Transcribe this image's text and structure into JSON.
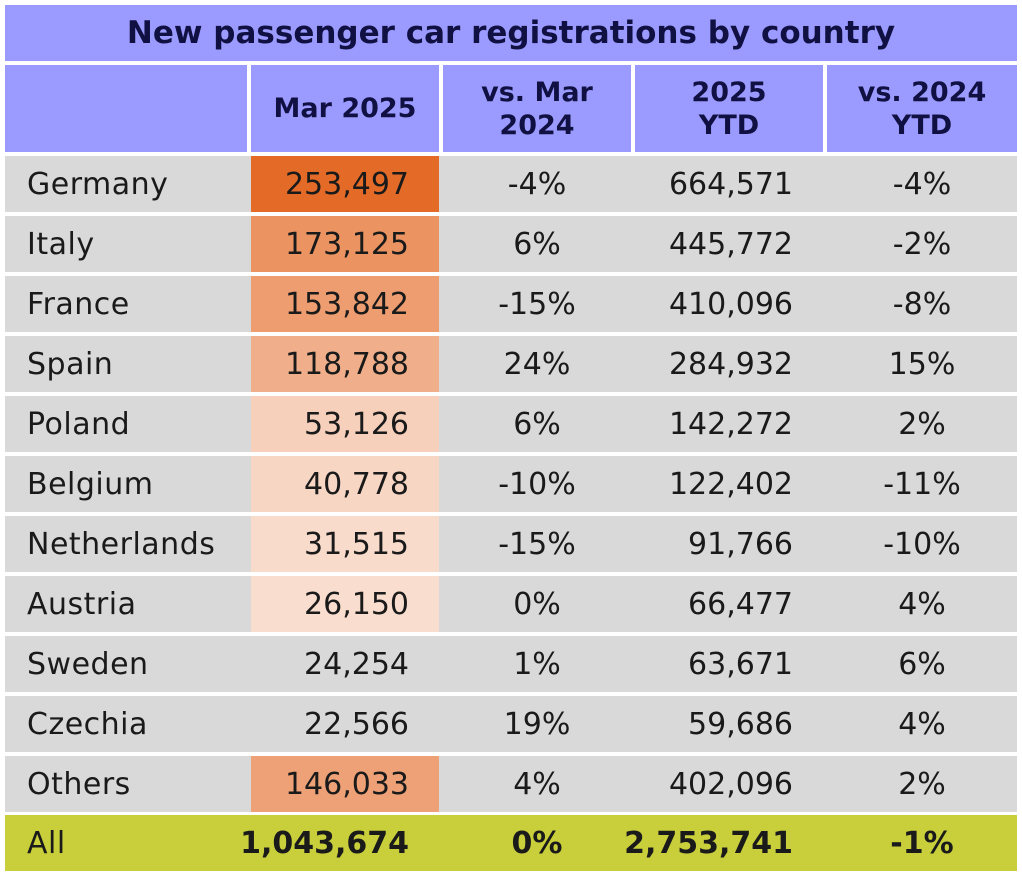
{
  "chart_data": {
    "type": "table",
    "title": "New passenger car registrations by country",
    "columns": [
      "",
      "Mar 2025",
      "vs. Mar\n2024",
      "2025\nYTD",
      "vs. 2024\nYTD"
    ],
    "rows": [
      {
        "country": "Germany",
        "mar2025": "253,497",
        "vs_mar2024": "-4%",
        "ytd2025": "664,571",
        "vs_ytd2024": "-4%",
        "value": 253497
      },
      {
        "country": "Italy",
        "mar2025": "173,125",
        "vs_mar2024": "6%",
        "ytd2025": "445,772",
        "vs_ytd2024": "-2%",
        "value": 173125
      },
      {
        "country": "France",
        "mar2025": "153,842",
        "vs_mar2024": "-15%",
        "ytd2025": "410,096",
        "vs_ytd2024": "-8%",
        "value": 153842
      },
      {
        "country": "Spain",
        "mar2025": "118,788",
        "vs_mar2024": "24%",
        "ytd2025": "284,932",
        "vs_ytd2024": "15%",
        "value": 118788
      },
      {
        "country": "Poland",
        "mar2025": "53,126",
        "vs_mar2024": "6%",
        "ytd2025": "142,272",
        "vs_ytd2024": "2%",
        "value": 53126
      },
      {
        "country": "Belgium",
        "mar2025": "40,778",
        "vs_mar2024": "-10%",
        "ytd2025": "122,402",
        "vs_ytd2024": "-11%",
        "value": 40778
      },
      {
        "country": "Netherlands",
        "mar2025": "31,515",
        "vs_mar2024": "-15%",
        "ytd2025": "91,766",
        "vs_ytd2024": "-10%",
        "value": 31515
      },
      {
        "country": "Austria",
        "mar2025": "26,150",
        "vs_mar2024": "0%",
        "ytd2025": "66,477",
        "vs_ytd2024": "4%",
        "value": 26150
      },
      {
        "country": "Sweden",
        "mar2025": "24,254",
        "vs_mar2024": "1%",
        "ytd2025": "63,671",
        "vs_ytd2024": "6%",
        "value": 24254
      },
      {
        "country": "Czechia",
        "mar2025": "22,566",
        "vs_mar2024": "19%",
        "ytd2025": "59,686",
        "vs_ytd2024": "4%",
        "value": 22566
      },
      {
        "country": "Others",
        "mar2025": "146,033",
        "vs_mar2024": "4%",
        "ytd2025": "402,096",
        "vs_ytd2024": "2%",
        "value": 146033
      }
    ],
    "total": {
      "country": "All",
      "mar2025": "1,043,674",
      "vs_mar2024": "0%",
      "ytd2025": "2,753,741",
      "vs_ytd2024": "-1%"
    },
    "colors": {
      "header": "#9b9bff",
      "row_bg": "#d9d9d9",
      "total_bg": "#c8cf3a",
      "heat_high": "#e46b27",
      "heat_low": "#ffffff"
    },
    "heat_scale_min": 25000
  }
}
